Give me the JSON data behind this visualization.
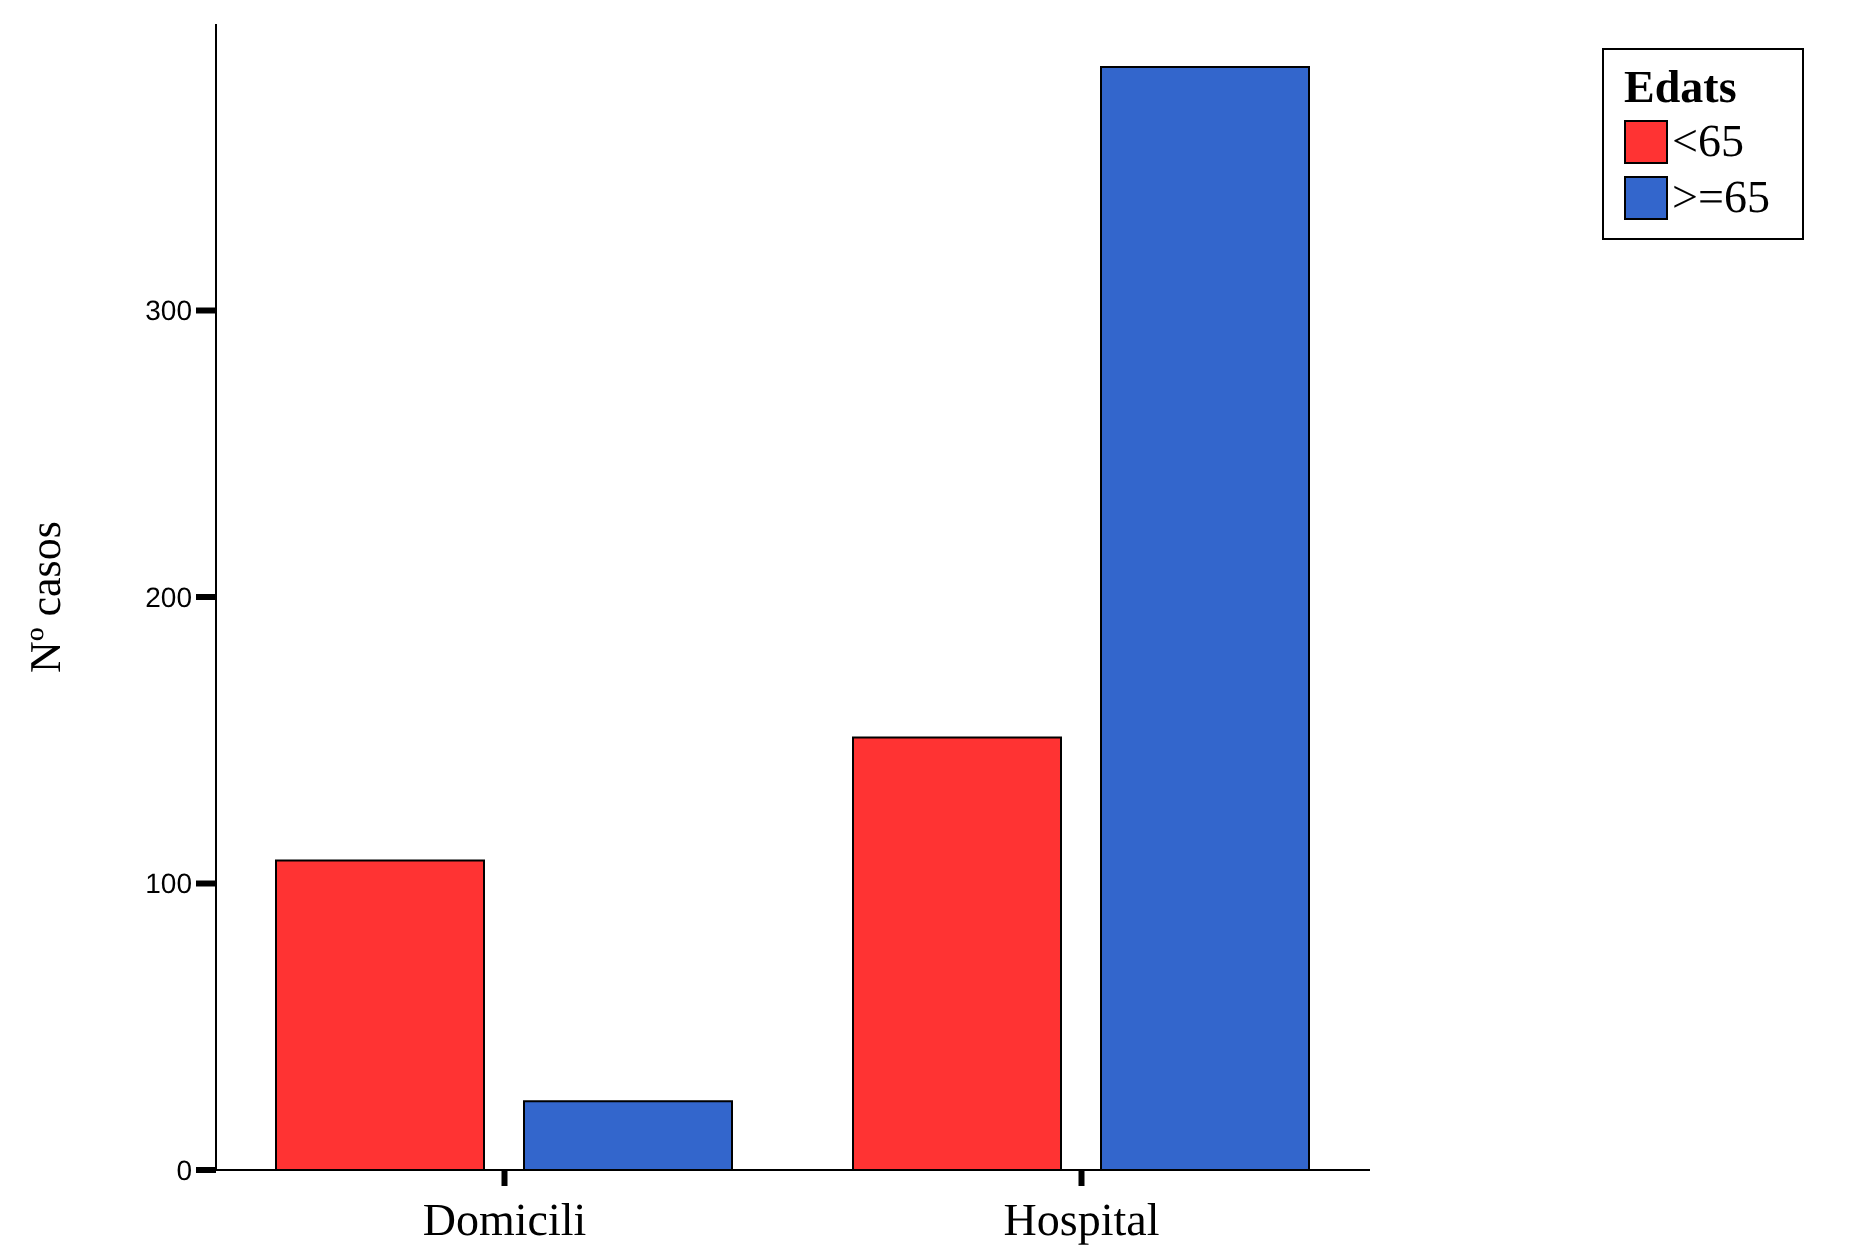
{
  "chart_data": {
    "type": "bar",
    "categories": [
      "Domicili",
      "Hospital"
    ],
    "ylabel": "Nº casos",
    "legend_title": "Edats",
    "legend": "top right",
    "grid": false,
    "series": [
      {
        "name": "<65",
        "color": "#ff3333",
        "values": [
          108,
          151
        ]
      },
      {
        "name": ">=65",
        "color": "#3366cc",
        "values": [
          24,
          385
        ]
      }
    ],
    "ylim": [
      0,
      400
    ],
    "yticks": [
      0,
      100,
      200,
      300
    ]
  }
}
